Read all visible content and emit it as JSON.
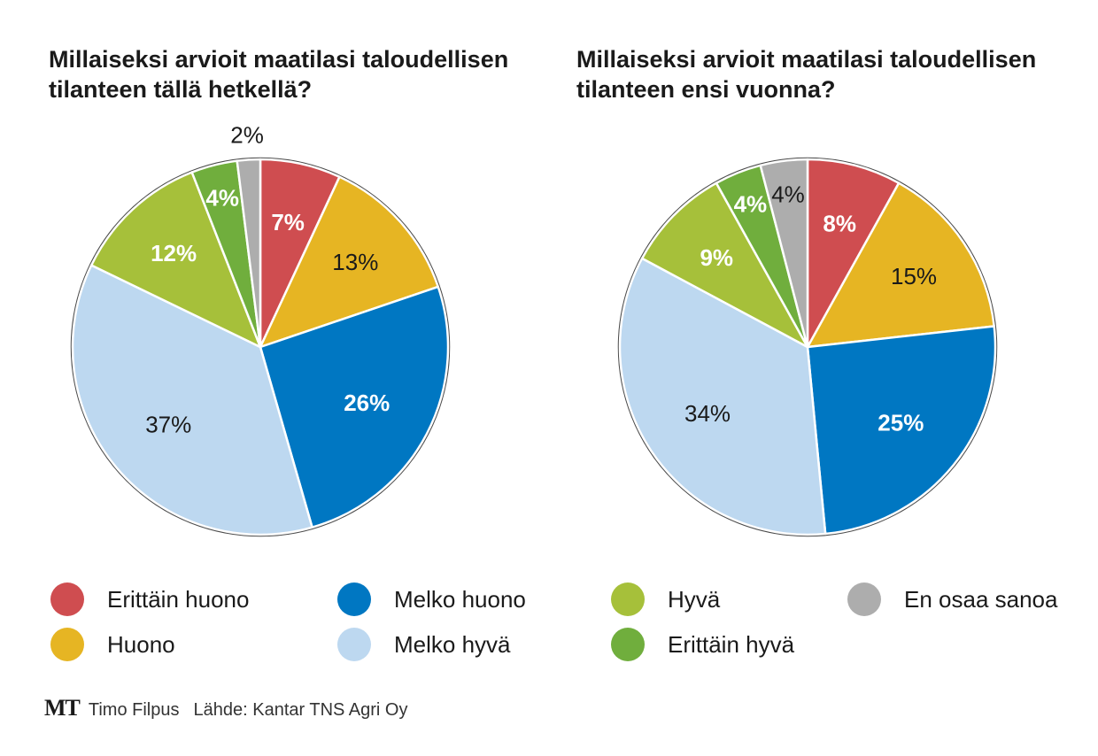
{
  "colors": {
    "erittain_huono": "#CF4D50",
    "huono": "#E6B523",
    "melko_huono": "#0077C2",
    "melko_hyva": "#BDD8F0",
    "hyva": "#A6C03A",
    "erittain_hyva": "#70AE3D",
    "en_osaa_sanoa": "#ADADAD"
  },
  "chart_data": [
    {
      "type": "pie",
      "title": "Millaiseksi arvioit maatilasi taloudellisen\ntilanteen tällä hetkellä?",
      "slices": [
        {
          "category": "Erittäin huono",
          "value": 7,
          "label": "7%",
          "color": "#CF4D50",
          "label_color": "#ffffff",
          "bold": true
        },
        {
          "category": "Huono",
          "value": 13,
          "label": "13%",
          "color": "#E6B523",
          "label_color": "#1a1a1a",
          "bold": false
        },
        {
          "category": "Melko huono",
          "value": 26,
          "label": "26%",
          "color": "#0077C2",
          "label_color": "#ffffff",
          "bold": true
        },
        {
          "category": "Melko hyvä",
          "value": 37,
          "label": "37%",
          "color": "#BDD8F0",
          "label_color": "#1a1a1a",
          "bold": false
        },
        {
          "category": "Hyvä",
          "value": 12,
          "label": "12%",
          "color": "#A6C03A",
          "label_color": "#ffffff",
          "bold": true
        },
        {
          "category": "Erittäin hyvä",
          "value": 4,
          "label": "4%",
          "color": "#70AE3D",
          "label_color": "#ffffff",
          "bold": true
        },
        {
          "category": "En osaa sanoa",
          "value": 2,
          "label": "2%",
          "color": "#ADADAD",
          "label_color": "#1a1a1a",
          "bold": false,
          "label_outside": true
        }
      ]
    },
    {
      "type": "pie",
      "title": "Millaiseksi arvioit maatilasi taloudellisen\ntilanteen ensi vuonna?",
      "slices": [
        {
          "category": "Erittäin huono",
          "value": 8,
          "label": "8%",
          "color": "#CF4D50",
          "label_color": "#ffffff",
          "bold": true
        },
        {
          "category": "Huono",
          "value": 15,
          "label": "15%",
          "color": "#E6B523",
          "label_color": "#1a1a1a",
          "bold": false
        },
        {
          "category": "Melko huono",
          "value": 25,
          "label": "25%",
          "color": "#0077C2",
          "label_color": "#ffffff",
          "bold": true
        },
        {
          "category": "Melko hyvä",
          "value": 34,
          "label": "34%",
          "color": "#BDD8F0",
          "label_color": "#1a1a1a",
          "bold": false
        },
        {
          "category": "Hyvä",
          "value": 9,
          "label": "9%",
          "color": "#A6C03A",
          "label_color": "#ffffff",
          "bold": true
        },
        {
          "category": "Erittäin hyvä",
          "value": 4,
          "label": "4%",
          "color": "#70AE3D",
          "label_color": "#ffffff",
          "bold": true
        },
        {
          "category": "En osaa sanoa",
          "value": 4,
          "label": "4%",
          "color": "#ADADAD",
          "label_color": "#1a1a1a",
          "bold": false
        }
      ]
    }
  ],
  "legend": [
    {
      "label": "Erittäin huono",
      "color": "#CF4D50"
    },
    {
      "label": "Huono",
      "color": "#E6B523"
    },
    {
      "label": "Melko huono",
      "color": "#0077C2"
    },
    {
      "label": "Melko hyvä",
      "color": "#BDD8F0"
    },
    {
      "label": "Hyvä",
      "color": "#A6C03A"
    },
    {
      "label": "Erittäin hyvä",
      "color": "#70AE3D"
    },
    {
      "label": "En osaa sanoa",
      "color": "#ADADAD"
    }
  ],
  "footer": {
    "logo": "MT",
    "author": "Timo Filpus",
    "source": "Lähde: Kantar TNS Agri Oy"
  }
}
